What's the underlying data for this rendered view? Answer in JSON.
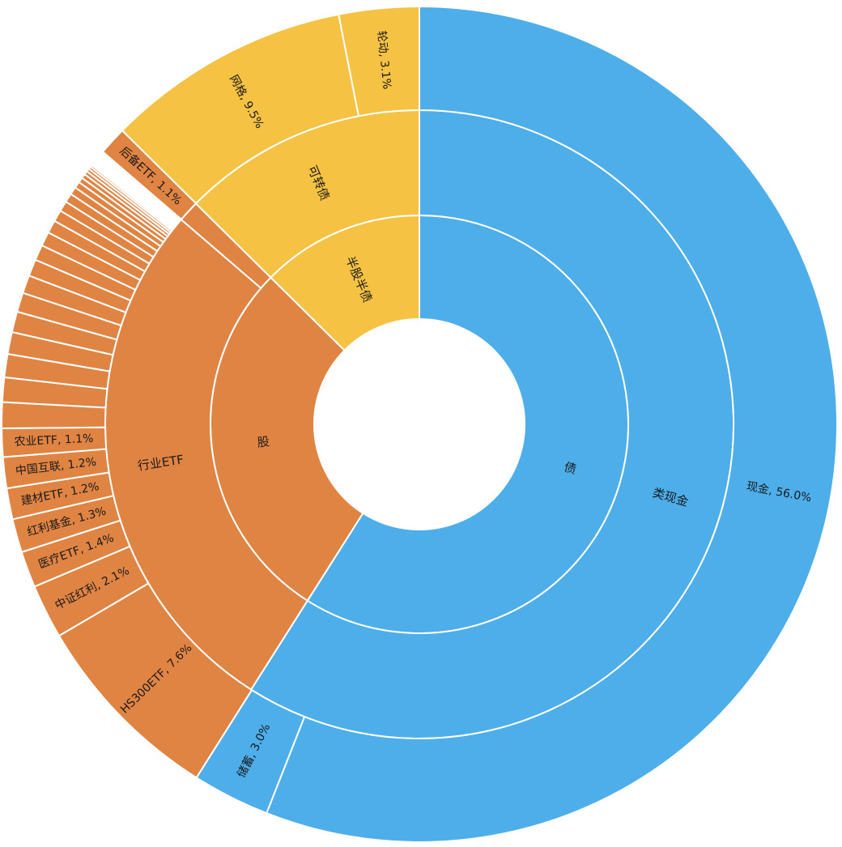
{
  "chart_data": {
    "type": "sunburst",
    "colors": {
      "bond": "#4daeea",
      "stock": "#e08444",
      "convertible": "#f5c244",
      "stroke": "#ffffff"
    },
    "rings": [
      {
        "level": 1,
        "segments": [
          {
            "label": "债",
            "value": 59.0,
            "group": "bond",
            "label_color": "#1a1a1a"
          },
          {
            "label": "股",
            "value": 28.4,
            "group": "stock",
            "label_color": "#1a1a1a"
          },
          {
            "label": "半股半债",
            "value": 12.6,
            "group": "convertible",
            "label_color": "#1a1a1a"
          }
        ]
      },
      {
        "level": 2,
        "segments": [
          {
            "label": "类现金",
            "value": 59.0,
            "group": "bond"
          },
          {
            "label": "行业ETF",
            "value": 27.3,
            "group": "stock"
          },
          {
            "label": "",
            "value": 1.1,
            "group": "stock"
          },
          {
            "label": "可转债",
            "value": 12.6,
            "group": "convertible"
          }
        ]
      },
      {
        "level": 3,
        "segments": [
          {
            "label": "现金, 56.0%",
            "value": 56.0,
            "group": "bond"
          },
          {
            "label": "储蓄, 3.0%",
            "value": 3.0,
            "group": "bond"
          },
          {
            "label": "HS300ETF, 7.6%",
            "value": 7.6,
            "group": "stock"
          },
          {
            "label": "中证红利, 2.1%",
            "value": 2.1,
            "group": "stock"
          },
          {
            "label": "医疗ETF, 1.4%",
            "value": 1.4,
            "group": "stock"
          },
          {
            "label": "红利基金, 1.3%",
            "value": 1.3,
            "group": "stock"
          },
          {
            "label": "建材ETF, 1.2%",
            "value": 1.2,
            "group": "stock"
          },
          {
            "label": "中国互联, 1.2%",
            "value": 1.2,
            "group": "stock"
          },
          {
            "label": "农业ETF, 1.1%",
            "value": 1.1,
            "group": "stock"
          },
          {
            "label": "",
            "value": 1.0,
            "group": "stock"
          },
          {
            "label": "",
            "value": 0.95,
            "group": "stock"
          },
          {
            "label": "",
            "value": 0.9,
            "group": "stock"
          },
          {
            "label": "",
            "value": 0.85,
            "group": "stock"
          },
          {
            "label": "",
            "value": 0.8,
            "group": "stock"
          },
          {
            "label": "",
            "value": 0.75,
            "group": "stock"
          },
          {
            "label": "",
            "value": 0.7,
            "group": "stock"
          },
          {
            "label": "",
            "value": 0.65,
            "group": "stock"
          },
          {
            "label": "",
            "value": 0.6,
            "group": "stock"
          },
          {
            "label": "",
            "value": 0.55,
            "group": "stock"
          },
          {
            "label": "",
            "value": 0.5,
            "group": "stock"
          },
          {
            "label": "",
            "value": 0.45,
            "group": "stock"
          },
          {
            "label": "",
            "value": 0.4,
            "group": "stock"
          },
          {
            "label": "",
            "value": 0.35,
            "group": "stock"
          },
          {
            "label": "",
            "value": 0.3,
            "group": "stock"
          },
          {
            "label": "",
            "value": 0.25,
            "group": "stock"
          },
          {
            "label": "",
            "value": 0.2,
            "group": "stock"
          },
          {
            "label": "",
            "value": 0.17,
            "group": "stock"
          },
          {
            "label": "",
            "value": 0.14,
            "group": "stock"
          },
          {
            "label": "",
            "value": 0.12,
            "group": "stock"
          },
          {
            "label": "",
            "value": 0.1,
            "group": "stock"
          },
          {
            "label": "",
            "value": 0.08,
            "group": "stock"
          },
          {
            "label": "",
            "value": 0.06,
            "group": "stock"
          },
          {
            "label": "",
            "value": 0.05,
            "group": "stock"
          },
          {
            "label": "",
            "value": 0.04,
            "group": "stock"
          },
          {
            "label": "",
            "value": 0.03,
            "group": "stock"
          },
          {
            "label": "",
            "value": 0.48,
            "group": "gap"
          },
          {
            "label": "后备ETF, 1.1%",
            "value": 1.1,
            "group": "stock"
          },
          {
            "label": "网格, 9.5%",
            "value": 9.5,
            "group": "convertible"
          },
          {
            "label": "轮动, 3.1%",
            "value": 3.1,
            "group": "convertible"
          }
        ]
      }
    ]
  }
}
